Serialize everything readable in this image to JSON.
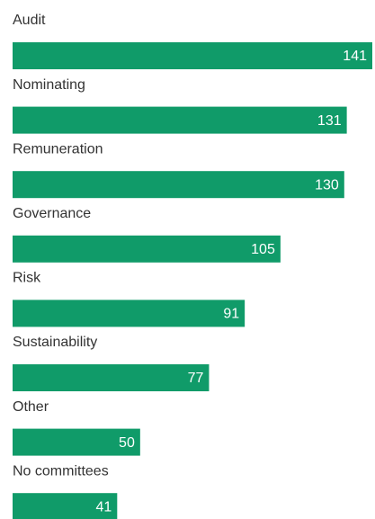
{
  "chart_data": {
    "type": "bar",
    "orientation": "horizontal",
    "categories": [
      "Audit",
      "Nominating",
      "Remuneration",
      "Governance",
      "Risk",
      "Sustainability",
      "Other",
      "No committees"
    ],
    "values": [
      141,
      131,
      130,
      105,
      91,
      77,
      50,
      41
    ],
    "color": "#109b69"
  }
}
